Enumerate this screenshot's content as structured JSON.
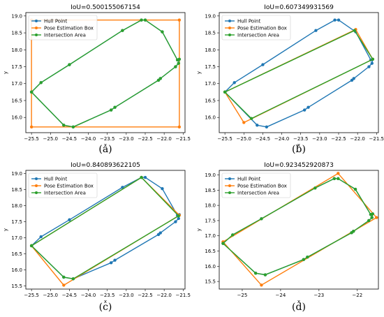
{
  "chart_data": [
    {
      "type": "line",
      "title": "IoU=0.500155067154",
      "caption": "(a)",
      "xlabel": "x",
      "ylabel": "y",
      "xlim": [
        -25.65,
        -21.45
      ],
      "ylim": [
        15.55,
        19.1
      ],
      "xticks": [
        -25.5,
        -25.0,
        -24.5,
        -24.0,
        -23.5,
        -23.0,
        -22.5,
        -22.0,
        -21.5
      ],
      "xtick_labels": [
        "−25.5",
        "−25.0",
        "−24.5",
        "−24.0",
        "−23.5",
        "−23.0",
        "−22.5",
        "−22.0",
        "−21.5"
      ],
      "yticks": [
        16.0,
        16.5,
        17.0,
        17.5,
        18.0,
        18.5,
        19.0
      ],
      "ytick_labels": [
        "16.0",
        "16.5",
        "17.0",
        "17.5",
        "18.0",
        "18.5",
        "19.0"
      ],
      "legend_position": "upper-left",
      "series": [
        {
          "name": "Hull Point",
          "color": "#1f77b4",
          "marker": true,
          "x": [
            -25.5,
            -25.25,
            -24.5,
            -23.1,
            -22.6,
            -22.5,
            -22.05,
            -21.65,
            -21.6,
            -21.62,
            -21.7,
            -22.1,
            -22.15,
            -23.3,
            -23.4,
            -24.4,
            -24.65,
            -25.5
          ],
          "y": [
            16.75,
            17.03,
            17.56,
            18.57,
            18.88,
            18.88,
            18.53,
            17.7,
            17.72,
            17.6,
            17.5,
            17.15,
            17.1,
            16.3,
            16.22,
            15.72,
            15.77,
            16.75
          ]
        },
        {
          "name": "Pose Estimation Box",
          "color": "#ff7f0e",
          "marker": true,
          "x": [
            -25.5,
            -21.6,
            -21.6,
            -25.5,
            -25.5
          ],
          "y": [
            18.88,
            18.88,
            15.72,
            15.72,
            18.88
          ]
        },
        {
          "name": "Intersection Area",
          "color": "#2ca02c",
          "marker": true,
          "x": [
            -25.5,
            -25.25,
            -24.5,
            -23.1,
            -22.6,
            -22.5,
            -22.05,
            -21.65,
            -21.6,
            -21.62,
            -21.7,
            -22.1,
            -22.15,
            -23.3,
            -23.4,
            -24.4,
            -24.65,
            -25.5
          ],
          "y": [
            16.75,
            17.03,
            17.56,
            18.57,
            18.88,
            18.88,
            18.53,
            17.7,
            17.72,
            17.6,
            17.5,
            17.15,
            17.1,
            16.3,
            16.22,
            15.72,
            15.77,
            16.75
          ]
        }
      ]
    },
    {
      "type": "line",
      "title": "IoU=0.607349931569",
      "caption": "(b)",
      "xlabel": "x",
      "ylabel": "y",
      "xlim": [
        -25.65,
        -21.45
      ],
      "ylim": [
        15.55,
        19.1
      ],
      "xticks": [
        -25.5,
        -25.0,
        -24.5,
        -24.0,
        -23.5,
        -23.0,
        -22.5,
        -22.0,
        -21.5
      ],
      "xtick_labels": [
        "−25.5",
        "−25.0",
        "−24.5",
        "−24.0",
        "−23.5",
        "−23.0",
        "−22.5",
        "−22.0",
        "−21.5"
      ],
      "yticks": [
        16.0,
        16.5,
        17.0,
        17.5,
        18.0,
        18.5,
        19.0
      ],
      "ytick_labels": [
        "16.0",
        "16.5",
        "17.0",
        "17.5",
        "18.0",
        "18.5",
        "19.0"
      ],
      "legend_position": "upper-left",
      "series": [
        {
          "name": "Hull Point",
          "color": "#1f77b4",
          "marker": true,
          "x": [
            -25.5,
            -25.25,
            -24.5,
            -23.1,
            -22.6,
            -22.5,
            -22.05,
            -21.65,
            -21.6,
            -21.62,
            -21.7,
            -22.1,
            -22.15,
            -23.3,
            -23.4,
            -24.4,
            -24.65,
            -25.5
          ],
          "y": [
            16.75,
            17.03,
            17.56,
            18.57,
            18.88,
            18.88,
            18.53,
            17.7,
            17.72,
            17.6,
            17.5,
            17.15,
            17.1,
            16.3,
            16.22,
            15.72,
            15.77,
            16.75
          ]
        },
        {
          "name": "Pose Estimation Box",
          "color": "#ff7f0e",
          "marker": true,
          "x": [
            -25.5,
            -22.05,
            -21.6,
            -25.0,
            -25.5
          ],
          "y": [
            16.75,
            18.6,
            17.72,
            15.85,
            16.75
          ]
        },
        {
          "name": "Intersection Area",
          "color": "#2ca02c",
          "marker": true,
          "x": [
            -25.5,
            -22.08,
            -21.6,
            -24.8,
            -25.5
          ],
          "y": [
            16.75,
            18.57,
            17.72,
            15.97,
            16.75
          ]
        }
      ]
    },
    {
      "type": "line",
      "title": "IoU=0.840893622105",
      "caption": "(c)",
      "xlabel": "x",
      "ylabel": "y",
      "xlim": [
        -25.65,
        -21.45
      ],
      "ylim": [
        15.4,
        19.1
      ],
      "xticks": [
        -25.5,
        -25.0,
        -24.5,
        -24.0,
        -23.5,
        -23.0,
        -22.5,
        -22.0,
        -21.5
      ],
      "xtick_labels": [
        "−25.5",
        "−25.0",
        "−24.5",
        "−24.0",
        "−23.5",
        "−23.0",
        "−22.5",
        "−22.0",
        "−21.5"
      ],
      "yticks": [
        15.5,
        16.0,
        16.5,
        17.0,
        17.5,
        18.0,
        18.5,
        19.0
      ],
      "ytick_labels": [
        "15.5",
        "16.0",
        "16.5",
        "17.0",
        "17.5",
        "18.0",
        "18.5",
        "19.0"
      ],
      "legend_position": "upper-left",
      "series": [
        {
          "name": "Hull Point",
          "color": "#1f77b4",
          "marker": true,
          "x": [
            -25.5,
            -25.25,
            -24.5,
            -23.1,
            -22.6,
            -22.5,
            -22.05,
            -21.65,
            -21.6,
            -21.62,
            -21.7,
            -22.1,
            -22.15,
            -23.3,
            -23.4,
            -24.4,
            -24.65,
            -25.5
          ],
          "y": [
            16.75,
            17.03,
            17.56,
            18.57,
            18.88,
            18.88,
            18.53,
            17.7,
            17.72,
            17.6,
            17.5,
            17.15,
            17.1,
            16.3,
            16.22,
            15.72,
            15.77,
            16.75
          ]
        },
        {
          "name": "Pose Estimation Box",
          "color": "#ff7f0e",
          "marker": true,
          "x": [
            -25.5,
            -22.6,
            -21.6,
            -24.65,
            -25.5
          ],
          "y": [
            16.75,
            18.88,
            17.7,
            15.52,
            16.75
          ]
        },
        {
          "name": "Intersection Area",
          "color": "#2ca02c",
          "marker": true,
          "x": [
            -25.5,
            -22.6,
            -21.62,
            -24.4,
            -24.65,
            -25.5
          ],
          "y": [
            16.75,
            18.88,
            17.68,
            15.72,
            15.77,
            16.75
          ]
        }
      ]
    },
    {
      "type": "line",
      "title": "IoU=0.923452920873",
      "caption": "(d)",
      "xlabel": "x",
      "ylabel": "y",
      "xlim": [
        -25.6,
        -21.45
      ],
      "ylim": [
        15.25,
        19.15
      ],
      "xticks": [
        -25,
        -24,
        -23,
        -22
      ],
      "xtick_labels": [
        "−25",
        "−24",
        "−23",
        "−22"
      ],
      "yticks": [
        15.5,
        16.0,
        16.5,
        17.0,
        17.5,
        18.0,
        18.5,
        19.0
      ],
      "ytick_labels": [
        "15.5",
        "16.0",
        "16.5",
        "17.0",
        "17.5",
        "18.0",
        "18.5",
        "19.0"
      ],
      "legend_position": "upper-left",
      "series": [
        {
          "name": "Hull Point",
          "color": "#1f77b4",
          "marker": true,
          "x": [
            -25.5,
            -25.25,
            -24.5,
            -23.1,
            -22.6,
            -22.5,
            -22.05,
            -21.65,
            -21.6,
            -21.62,
            -21.7,
            -22.1,
            -22.15,
            -23.3,
            -23.4,
            -24.4,
            -24.65,
            -25.5
          ],
          "y": [
            16.75,
            17.03,
            17.56,
            18.57,
            18.88,
            18.88,
            18.53,
            17.7,
            17.72,
            17.6,
            17.5,
            17.15,
            17.1,
            16.3,
            16.22,
            15.72,
            15.77,
            16.75
          ]
        },
        {
          "name": "Pose Estimation Box",
          "color": "#ff7f0e",
          "marker": true,
          "x": [
            -25.5,
            -22.5,
            -21.5,
            -24.5,
            -25.5
          ],
          "y": [
            16.8,
            19.05,
            17.6,
            15.38,
            16.8
          ]
        },
        {
          "name": "Intersection Area",
          "color": "#2ca02c",
          "marker": true,
          "x": [
            -25.5,
            -25.25,
            -24.5,
            -23.1,
            -22.6,
            -22.5,
            -22.05,
            -21.65,
            -21.6,
            -21.62,
            -21.7,
            -22.1,
            -22.15,
            -23.3,
            -23.4,
            -24.4,
            -24.65,
            -25.5
          ],
          "y": [
            16.75,
            17.03,
            17.56,
            18.57,
            18.88,
            18.88,
            18.53,
            17.7,
            17.72,
            17.6,
            17.5,
            17.15,
            17.1,
            16.3,
            16.22,
            15.72,
            15.77,
            16.75
          ]
        }
      ]
    }
  ]
}
